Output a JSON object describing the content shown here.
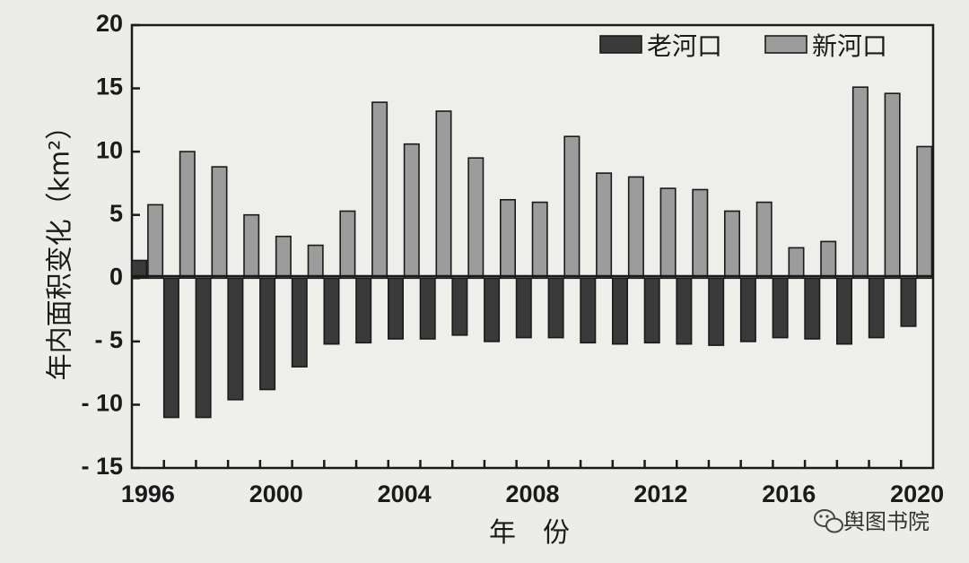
{
  "chart_data": {
    "type": "bar",
    "xlabel": "年　份",
    "ylabel": "年内面积变化（km²）",
    "ylim": [
      -15,
      20
    ],
    "yticks": [
      20,
      15,
      10,
      5,
      0,
      -5,
      -10,
      -15
    ],
    "ytick_labels": [
      "20",
      "15",
      "10",
      "5",
      "0",
      "- 5",
      "- 10",
      "- 15"
    ],
    "xtick_labels": [
      "1996",
      "2000",
      "2004",
      "2008",
      "2012",
      "2016",
      "2020"
    ],
    "xtick_years": [
      1996,
      2000,
      2004,
      2008,
      2012,
      2016,
      2020
    ],
    "categories": [
      1996,
      1997,
      1998,
      1999,
      2000,
      2001,
      2002,
      2003,
      2004,
      2005,
      2006,
      2007,
      2008,
      2009,
      2010,
      2011,
      2012,
      2013,
      2014,
      2015,
      2016,
      2017,
      2018,
      2019,
      2020
    ],
    "series": [
      {
        "name": "老河口",
        "color": "#3a3a3a",
        "values": [
          1.4,
          -11.0,
          -11.0,
          -9.6,
          -8.8,
          -7.0,
          -5.2,
          -5.1,
          -4.8,
          -4.8,
          -4.5,
          -5.0,
          -4.7,
          -4.7,
          -5.1,
          -5.2,
          -5.1,
          -5.2,
          -5.3,
          -5.0,
          -4.7,
          -4.8,
          -5.2,
          -4.7,
          -3.8
        ]
      },
      {
        "name": "新河口",
        "color": "#9c9c9c",
        "values": [
          5.8,
          10.0,
          8.8,
          5.0,
          3.3,
          2.6,
          5.3,
          13.9,
          10.6,
          13.2,
          9.5,
          6.2,
          6.0,
          11.2,
          8.3,
          8.0,
          7.1,
          7.0,
          5.3,
          6.0,
          2.4,
          2.9,
          15.1,
          14.6,
          10.4
        ]
      }
    ],
    "grid": false,
    "legend": "top-right"
  },
  "watermark": {
    "text": "舆图书院",
    "icon": "wechat-icon"
  }
}
